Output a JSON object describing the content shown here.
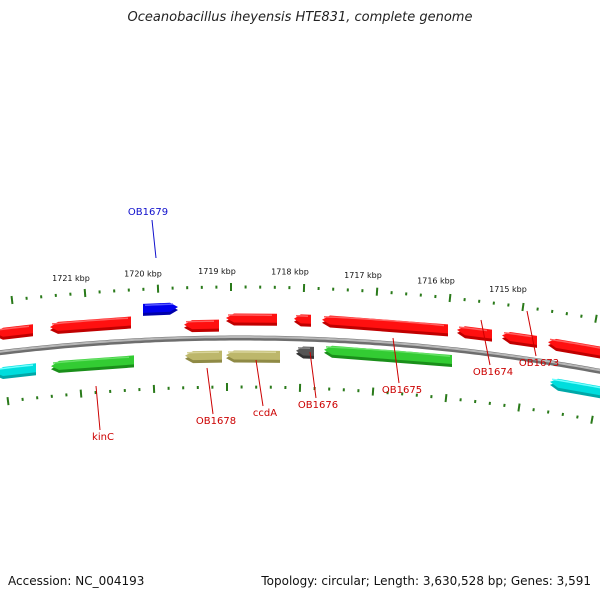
{
  "title": "Oceanobacillus iheyensis HTE831, complete genome",
  "footer": {
    "accession": "Accession: NC_004193",
    "summary": "Topology: circular; Length: 3,630,528 bp; Genes: 3,591"
  },
  "colors": {
    "backbone": "#8a8a8a",
    "ticks": "#2a7a1a",
    "label_red": "#cc0000",
    "label_blue": "#1010cc",
    "red": "#ff1010",
    "green": "#33cc33",
    "cyan": "#00dddd",
    "khaki": "#bdb76b",
    "gray": "#555555",
    "blue": "#0000ee"
  },
  "map": {
    "ticks": [
      "1721 kbp",
      "1720 kbp",
      "1719 kbp",
      "1718 kbp",
      "1717 kbp",
      "1716 kbp",
      "1715 kbp"
    ],
    "genes": [
      {
        "name": "OB1679",
        "color": "blue",
        "strand": "plus",
        "label": "OB1679",
        "label_color": "label_blue"
      },
      {
        "name": "kinC",
        "color": "green",
        "strand": "minus",
        "label": "kinC",
        "label_color": "label_red"
      },
      {
        "name": "OB1678",
        "color": "khaki",
        "strand": "minus",
        "label": "OB1678",
        "label_color": "label_red"
      },
      {
        "name": "ccdA",
        "color": "khaki",
        "strand": "minus",
        "label": "ccdA",
        "label_color": "label_red"
      },
      {
        "name": "OB1676",
        "color": "gray",
        "strand": "minus",
        "label": "OB1676",
        "label_color": "label_red"
      },
      {
        "name": "OB1675",
        "color": "green",
        "strand": "minus",
        "label": "OB1675",
        "label_color": "label_red"
      },
      {
        "name": "OB1674",
        "color": "red",
        "strand": "minus",
        "label": "OB1674",
        "label_color": "label_red"
      },
      {
        "name": "OB1673",
        "color": "red",
        "strand": "minus",
        "label": "OB1673",
        "label_color": "label_red"
      }
    ]
  }
}
